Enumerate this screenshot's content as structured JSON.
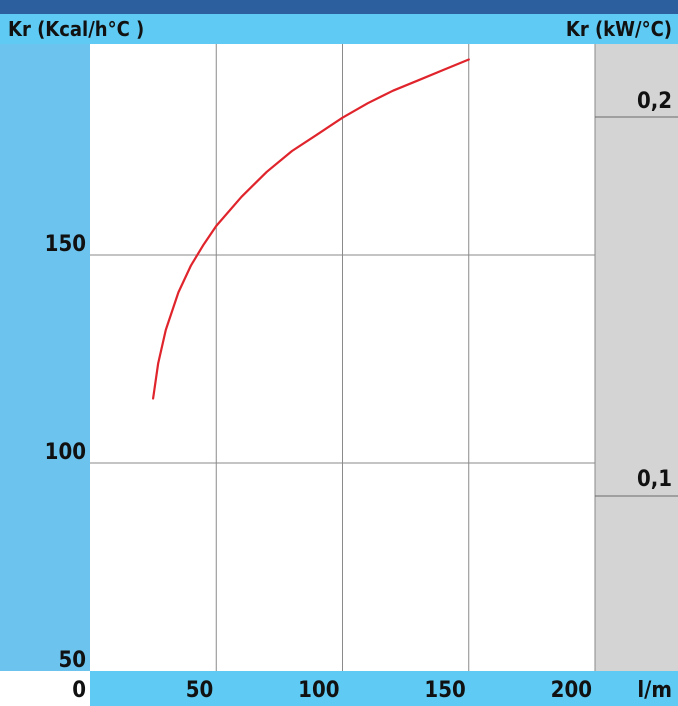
{
  "chart_data": {
    "type": "line",
    "y_left_label": "Kr (Kcal/h°C )",
    "y_right_label": "Kr (kW/°C)",
    "x_unit_label": "l/m",
    "x_ticks": [
      "0",
      "50",
      "100",
      "150",
      "200"
    ],
    "y_left_ticks": [
      "50",
      "100",
      "150"
    ],
    "y_right_ticks": [
      "0,1",
      "0,2"
    ],
    "xlim": [
      0,
      250
    ],
    "ylim": [
      50,
      200
    ],
    "grid": true,
    "series": [
      {
        "color": "#e0242c",
        "x": [
          25,
          27,
          30,
          35,
          40,
          45,
          50,
          60,
          70,
          80,
          90,
          100,
          110,
          120,
          130,
          140,
          150
        ],
        "y": [
          115.5,
          124,
          132,
          141,
          147.5,
          152.5,
          157,
          164,
          170,
          175,
          179,
          183,
          186.5,
          189.5,
          192,
          194.5,
          197
        ]
      }
    ]
  },
  "colors": {
    "header": "#5fcbf4",
    "right_panel": "#d4d4d4",
    "plot_bg": "#ffffff",
    "grid": "#8a8a8a",
    "frame": "#2c5f9e"
  }
}
